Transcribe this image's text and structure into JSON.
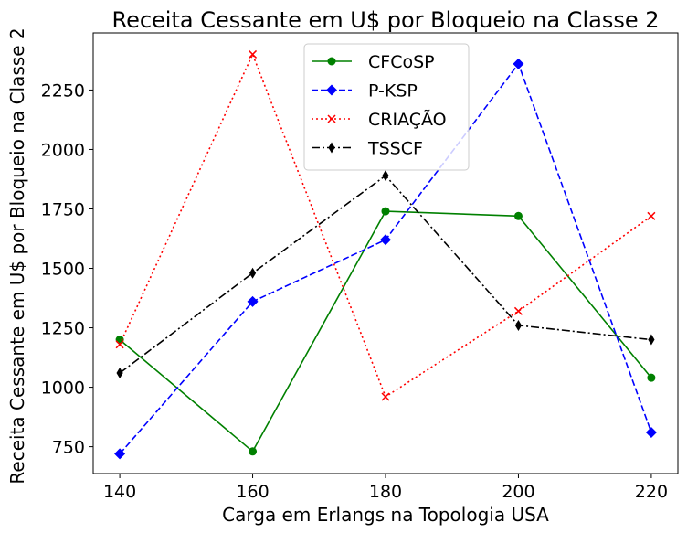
{
  "chart_data": {
    "type": "line",
    "title": "Receita Cessante em U$ por Bloqueio na Classe 2",
    "xlabel": "Carga em Erlangs na Topologia USA",
    "ylabel": "Receita Cessante em U$ por Bloqueio na Classe 2",
    "x": [
      140,
      160,
      180,
      200,
      220
    ],
    "xlim": [
      136,
      224
    ],
    "ylim": [
      637,
      2490
    ],
    "yticks": [
      750,
      1000,
      1250,
      1500,
      1750,
      2000,
      2250
    ],
    "legend_position": "upper center",
    "series": [
      {
        "name": "CFCoSP",
        "color": "#008000",
        "linestyle": "solid",
        "marker": "circle",
        "values": [
          1200,
          730,
          1740,
          1720,
          1040
        ]
      },
      {
        "name": "P-KSP",
        "color": "#0000ff",
        "linestyle": "dashed",
        "marker": "diamond",
        "values": [
          720,
          1360,
          1620,
          2360,
          810
        ]
      },
      {
        "name": "CRIAÇÃO",
        "color": "#ff0000",
        "linestyle": "dotted",
        "marker": "x",
        "values": [
          1180,
          2400,
          960,
          1320,
          1720
        ]
      },
      {
        "name": "TSSCF",
        "color": "#000000",
        "linestyle": "dashdot",
        "marker": "thin-diamond",
        "values": [
          1060,
          1480,
          1890,
          1260,
          1200
        ]
      }
    ]
  }
}
